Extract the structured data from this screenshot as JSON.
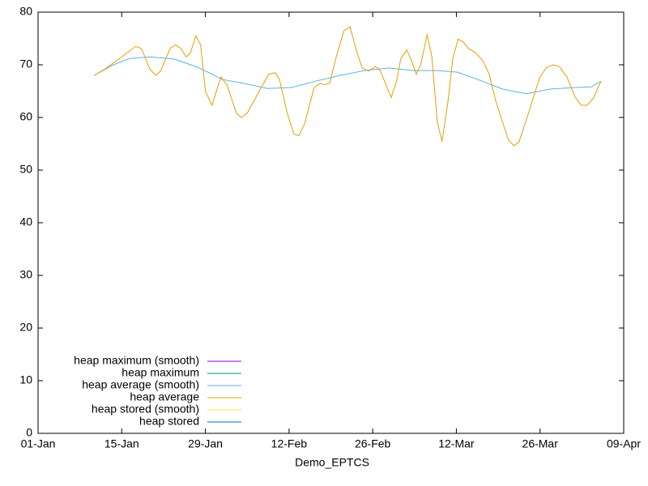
{
  "chart_data": {
    "type": "line",
    "xlabel": "Demo_EPTCS",
    "xlim": [
      0,
      98
    ],
    "xticks": [
      {
        "value": 0,
        "label": "01-Jan"
      },
      {
        "value": 14,
        "label": "15-Jan"
      },
      {
        "value": 28,
        "label": "29-Jan"
      },
      {
        "value": 42,
        "label": "12-Feb"
      },
      {
        "value": 56,
        "label": "26-Feb"
      },
      {
        "value": 70,
        "label": "12-Mar"
      },
      {
        "value": 84,
        "label": "26-Mar"
      },
      {
        "value": 98,
        "label": "09-Apr"
      }
    ],
    "ylim": [
      0,
      80
    ],
    "yticks": [
      0,
      10,
      20,
      30,
      40,
      50,
      60,
      70,
      80
    ],
    "grid": false,
    "legend": "bottom-left",
    "series": [
      {
        "name": "heap maximum (smooth)",
        "color": "#9400d3",
        "x": [],
        "values": []
      },
      {
        "name": "heap maximum",
        "color": "#009e73",
        "x": [],
        "values": []
      },
      {
        "name": "heap average (smooth)",
        "color": "#56b4e9",
        "x": [
          9.4,
          12.6,
          15.3,
          18.7,
          22.8,
          26.8,
          30.9,
          34.3,
          38.4,
          42.4,
          46.5,
          50.6,
          54.6,
          58.7,
          62.8,
          66.8,
          70.2,
          73.6,
          77.7,
          81.7,
          85.8,
          89.9,
          92.6,
          94.2
        ],
        "values": [
          68,
          70,
          71.2,
          71.5,
          71.1,
          69.5,
          67.2,
          66.5,
          65.5,
          65.7,
          66.9,
          68,
          68.9,
          69.4,
          68.9,
          68.9,
          68.6,
          67.2,
          65.4,
          64.5,
          65.4,
          65.7,
          65.8,
          66.9
        ]
      },
      {
        "name": "heap average",
        "color": "#e69f00",
        "x": [
          9.4,
          11.2,
          14,
          16.3,
          17.3,
          18.7,
          19.7,
          20.5,
          22.1,
          23,
          23.9,
          24.8,
          25.5,
          26.4,
          27.2,
          28,
          29.1,
          30.6,
          31.6,
          33.2,
          34,
          35,
          37,
          38.6,
          39.7,
          40.4,
          41.7,
          42.8,
          43.6,
          44.6,
          46.2,
          47.2,
          47.8,
          48.8,
          49.9,
          51.2,
          52.2,
          53.3,
          54.2,
          55.3,
          56.5,
          57.3,
          58.4,
          59.1,
          60,
          60.7,
          61.7,
          62.5,
          63.3,
          64.1,
          65.1,
          65.9,
          66.8,
          67.6,
          68.6,
          69.4,
          70.3,
          71.2,
          72,
          73.3,
          74.4,
          75.5,
          76.6,
          77.9,
          78.7,
          79.6,
          80.5,
          81.7,
          83.1,
          84,
          85.1,
          86.2,
          87.2,
          88.5,
          89.9,
          90.9,
          91.9,
          93,
          94.2
        ],
        "values": [
          68,
          69.2,
          71.5,
          73.5,
          73.1,
          69.2,
          68,
          68.8,
          73.1,
          73.8,
          73.1,
          71.5,
          72.3,
          75.5,
          73.8,
          65,
          62.3,
          67.7,
          66.2,
          60.8,
          60,
          60.8,
          65,
          68.2,
          68.5,
          67.2,
          60.8,
          56.9,
          56.5,
          58.8,
          65.7,
          66.5,
          66.2,
          66.5,
          71.5,
          76.5,
          77.2,
          72.6,
          69.5,
          68.8,
          69.7,
          68.8,
          65.7,
          63.8,
          66.9,
          71.2,
          72.8,
          70.8,
          68.2,
          70.3,
          75.8,
          71.5,
          59.2,
          55.4,
          63.1,
          71.2,
          74.9,
          74.3,
          73.1,
          72.2,
          70.8,
          68.2,
          63.1,
          58.5,
          55.8,
          54.6,
          55.4,
          59.5,
          64.6,
          67.7,
          69.5,
          70,
          69.7,
          67.7,
          63.8,
          62.3,
          62.3,
          63.8,
          66.9
        ]
      },
      {
        "name": "heap stored (smooth)",
        "color": "#f0e442",
        "x": [],
        "values": []
      },
      {
        "name": "heap stored",
        "color": "#0072b2",
        "x": [],
        "values": []
      }
    ]
  }
}
